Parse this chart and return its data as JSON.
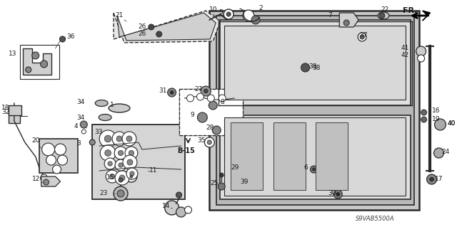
{
  "bg_color": "#ffffff",
  "diagram_code": "S9VAB5500A",
  "fig_width": 6.4,
  "fig_height": 3.19,
  "dpi": 100,
  "lc": "#2a2a2a",
  "tc": "#1a1a1a",
  "gray_fill": "#c8c8c8",
  "light_gray": "#e0e0e0",
  "hatched_gray": "#b8b8b8"
}
